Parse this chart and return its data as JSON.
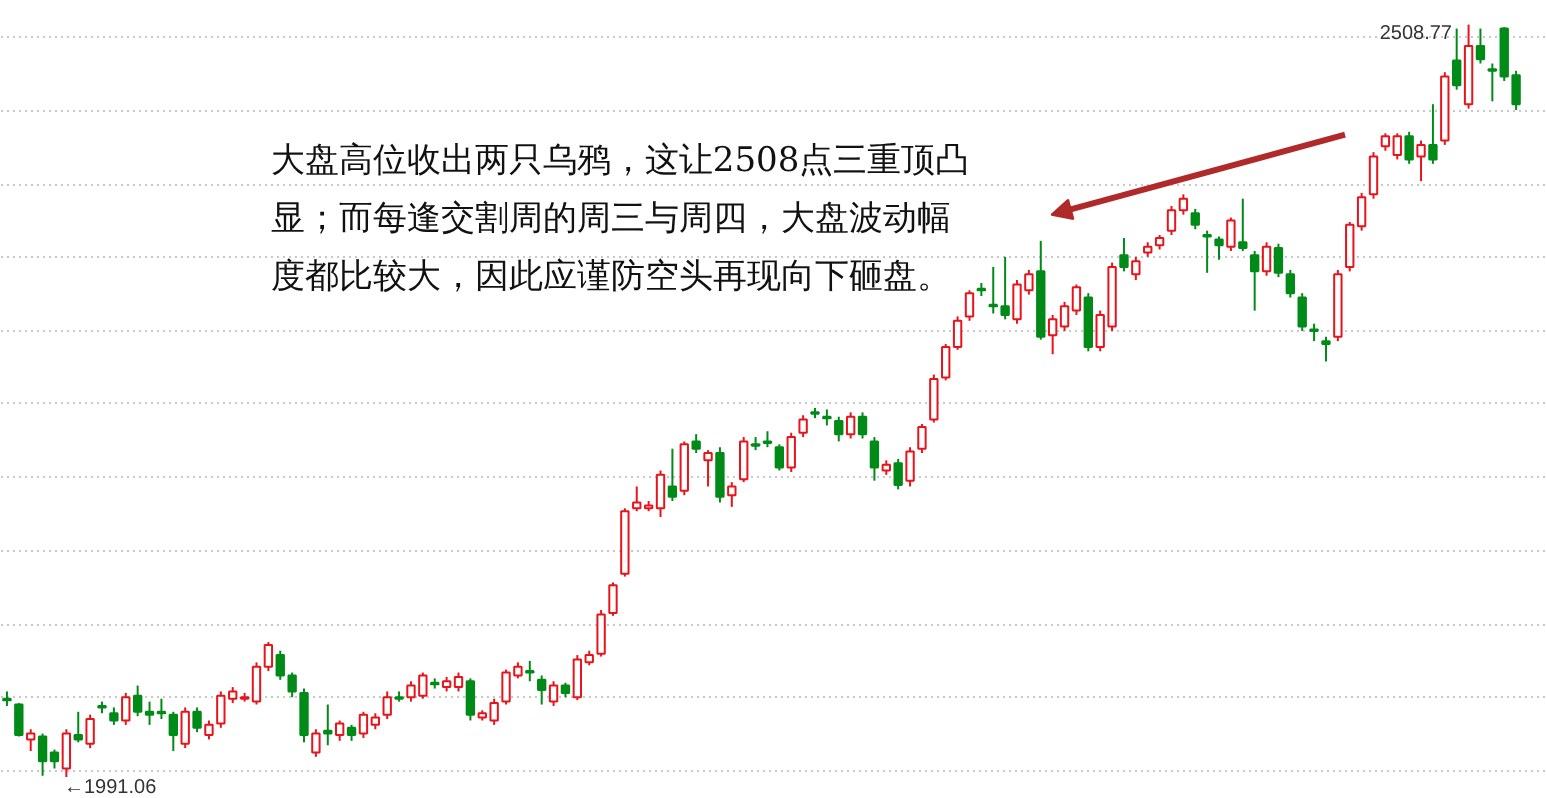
{
  "chart_data": {
    "type": "candlestick",
    "categories": [
      null,
      null,
      null,
      null,
      null,
      null,
      null,
      null,
      null,
      null,
      null,
      null,
      null,
      null,
      null,
      null,
      null,
      null,
      null,
      null,
      null,
      null,
      null,
      null,
      null,
      null,
      null,
      null,
      null,
      null,
      null,
      null,
      null,
      null,
      null,
      null,
      null,
      null,
      null,
      null,
      null,
      null,
      null,
      null,
      null,
      null,
      null,
      null,
      null,
      null,
      null,
      null,
      null,
      null,
      null,
      null,
      null,
      null,
      null,
      null,
      null,
      null,
      null,
      null,
      null,
      null,
      null,
      null,
      null,
      null,
      null,
      null,
      null,
      null,
      null,
      null,
      null,
      null,
      null,
      null,
      null,
      null,
      null,
      null,
      null,
      null,
      null,
      null,
      null,
      null,
      null,
      null,
      null,
      null,
      null,
      null,
      null,
      null,
      null,
      null,
      null,
      null,
      null,
      null,
      null,
      null,
      null,
      null,
      null,
      null,
      null,
      null,
      null,
      null,
      null,
      null,
      null,
      null,
      null,
      null,
      null,
      null,
      null,
      null,
      null,
      null,
      null,
      null
    ],
    "ohlc": [
      [
        2045,
        2050,
        2040,
        2044
      ],
      [
        2041,
        2042,
        2019,
        2020
      ],
      [
        2017,
        2024,
        2009,
        2021
      ],
      [
        2019,
        2021,
        1992,
        2002
      ],
      [
        2008,
        2010,
        1997,
        2002
      ],
      [
        1997,
        2024,
        1991.06,
        2021
      ],
      [
        2020,
        2036,
        2015,
        2017
      ],
      [
        2014,
        2034,
        2011,
        2031
      ],
      [
        2040,
        2043,
        2035,
        2039
      ],
      [
        2035,
        2039,
        2027,
        2030
      ],
      [
        2030,
        2049,
        2027,
        2046
      ],
      [
        2047,
        2054,
        2033,
        2036
      ],
      [
        2036,
        2043,
        2027,
        2034
      ],
      [
        2036,
        2045,
        2031,
        2035
      ],
      [
        2034,
        2036,
        2009,
        2020
      ],
      [
        2014,
        2039,
        2011,
        2036
      ],
      [
        2036,
        2039,
        2022,
        2025
      ],
      [
        2020,
        2030,
        2017,
        2027
      ],
      [
        2028,
        2050,
        2025,
        2047
      ],
      [
        2045,
        2053,
        2042,
        2050
      ],
      [
        2045,
        2049,
        2043,
        2046
      ],
      [
        2043,
        2070,
        2041,
        2067
      ],
      [
        2067,
        2084,
        2064,
        2082
      ],
      [
        2075,
        2078,
        2058,
        2061
      ],
      [
        2061,
        2063,
        2046,
        2050
      ],
      [
        2049,
        2052,
        2015,
        2020
      ],
      [
        2008,
        2024,
        2005,
        2021
      ],
      [
        2023,
        2041,
        2013,
        2021
      ],
      [
        2020,
        2030,
        2016,
        2028
      ],
      [
        2025,
        2027,
        2016,
        2020
      ],
      [
        2021,
        2036,
        2018,
        2034
      ],
      [
        2027,
        2035,
        2024,
        2032
      ],
      [
        2034,
        2050,
        2031,
        2046
      ],
      [
        2046,
        2050,
        2043,
        2045
      ],
      [
        2046,
        2057,
        2043,
        2054
      ],
      [
        2047,
        2063,
        2045,
        2061
      ],
      [
        2056,
        2059,
        2052,
        2055
      ],
      [
        2053,
        2060,
        2050,
        2057
      ],
      [
        2053,
        2063,
        2050,
        2060
      ],
      [
        2057,
        2059,
        2030,
        2034
      ],
      [
        2032,
        2037,
        2030,
        2035
      ],
      [
        2030,
        2045,
        2027,
        2042
      ],
      [
        2043,
        2065,
        2041,
        2063
      ],
      [
        2061,
        2070,
        2059,
        2067
      ],
      [
        2064,
        2071,
        2057,
        2063
      ],
      [
        2058,
        2061,
        2041,
        2051
      ],
      [
        2043,
        2057,
        2040,
        2054
      ],
      [
        2054,
        2056,
        2046,
        2049
      ],
      [
        2046,
        2075,
        2044,
        2072
      ],
      [
        2070,
        2078,
        2068,
        2075
      ],
      [
        2076,
        2106,
        2074,
        2103
      ],
      [
        2104,
        2125,
        2102,
        2123
      ],
      [
        2131,
        2176,
        2129,
        2174
      ],
      [
        2176,
        2191,
        2174,
        2180
      ],
      [
        2176,
        2181,
        2174,
        2178
      ],
      [
        2176,
        2202,
        2170,
        2199
      ],
      [
        2191,
        2217,
        2181,
        2184
      ],
      [
        2188,
        2222,
        2185,
        2220
      ],
      [
        2222,
        2227,
        2214,
        2217
      ],
      [
        2209,
        2216,
        2191,
        2214
      ],
      [
        2214,
        2218,
        2180,
        2184
      ],
      [
        2185,
        2194,
        2177,
        2191
      ],
      [
        2196,
        2225,
        2194,
        2222
      ],
      [
        2220,
        2225,
        2216,
        2219
      ],
      [
        2222,
        2229,
        2218,
        2221
      ],
      [
        2218,
        2220,
        2202,
        2204
      ],
      [
        2204,
        2228,
        2201,
        2225
      ],
      [
        2228,
        2240,
        2225,
        2237
      ],
      [
        2242,
        2245,
        2238,
        2241
      ],
      [
        2239,
        2244,
        2233,
        2238
      ],
      [
        2236,
        2239,
        2222,
        2227
      ],
      [
        2227,
        2242,
        2224,
        2239
      ],
      [
        2239,
        2242,
        2224,
        2227
      ],
      [
        2222,
        2225,
        2195,
        2204
      ],
      [
        2202,
        2209,
        2199,
        2206
      ],
      [
        2207,
        2210,
        2189,
        2192
      ],
      [
        2195,
        2218,
        2191,
        2215
      ],
      [
        2217,
        2234,
        2214,
        2232
      ],
      [
        2237,
        2268,
        2235,
        2265
      ],
      [
        2266,
        2289,
        2264,
        2287
      ],
      [
        2287,
        2308,
        2285,
        2305
      ],
      [
        2308,
        2326,
        2305,
        2324
      ],
      [
        2327,
        2331,
        2322,
        2326
      ],
      [
        2316,
        2342,
        2310,
        2315
      ],
      [
        2315,
        2349,
        2306,
        2309
      ],
      [
        2306,
        2333,
        2303,
        2330
      ],
      [
        2326,
        2340,
        2323,
        2337
      ],
      [
        2339,
        2360,
        2292,
        2294
      ],
      [
        2295,
        2309,
        2282,
        2306
      ],
      [
        2301,
        2318,
        2298,
        2315
      ],
      [
        2312,
        2330,
        2309,
        2328
      ],
      [
        2321,
        2324,
        2284,
        2287
      ],
      [
        2287,
        2312,
        2284,
        2309
      ],
      [
        2301,
        2345,
        2298,
        2342
      ],
      [
        2350,
        2362,
        2339,
        2342
      ],
      [
        2337,
        2349,
        2333,
        2346
      ],
      [
        2352,
        2359,
        2349,
        2356
      ],
      [
        2357,
        2364,
        2354,
        2362
      ],
      [
        2367,
        2384,
        2364,
        2381
      ],
      [
        2381,
        2392,
        2378,
        2389
      ],
      [
        2379,
        2382,
        2368,
        2371
      ],
      [
        2364,
        2367,
        2338,
        2363
      ],
      [
        2361,
        2363,
        2347,
        2357
      ],
      [
        2356,
        2376,
        2353,
        2374
      ],
      [
        2359,
        2389,
        2353,
        2355
      ],
      [
        2350,
        2353,
        2312,
        2339
      ],
      [
        2339,
        2359,
        2336,
        2356
      ],
      [
        2355,
        2358,
        2335,
        2338
      ],
      [
        2337,
        2340,
        2321,
        2324
      ],
      [
        2321,
        2324,
        2298,
        2301
      ],
      [
        2299,
        2303,
        2291,
        2298
      ],
      [
        2291,
        2294,
        2277,
        2289
      ],
      [
        2294,
        2340,
        2291,
        2337
      ],
      [
        2342,
        2373,
        2339,
        2371
      ],
      [
        2370,
        2393,
        2367,
        2390
      ],
      [
        2392,
        2421,
        2389,
        2418
      ],
      [
        2425,
        2434,
        2422,
        2432
      ],
      [
        2419,
        2434,
        2416,
        2432
      ],
      [
        2432,
        2435,
        2413,
        2416
      ],
      [
        2418,
        2429,
        2401,
        2426
      ],
      [
        2426,
        2454,
        2413,
        2416
      ],
      [
        2429,
        2476,
        2426,
        2473
      ],
      [
        2484,
        2506,
        2464,
        2467
      ],
      [
        2454,
        2508.77,
        2451,
        2494
      ],
      [
        2494,
        2506,
        2482,
        2485
      ],
      [
        2478,
        2482,
        2456,
        2477
      ],
      [
        2506,
        2507,
        2470,
        2473
      ],
      [
        2474,
        2477,
        2450,
        2454
      ]
    ],
    "colors": [
      "#008a17",
      "#008a17",
      "#e8141c",
      "#008a17",
      "#008a17",
      "#e8141c",
      "#008a17",
      "#e8141c",
      "#008a17",
      "#008a17",
      "#e8141c",
      "#008a17",
      "#008a17",
      "#008a17",
      "#008a17",
      "#e8141c",
      "#008a17",
      "#e8141c",
      "#e8141c",
      "#e8141c",
      "#e8141c",
      "#e8141c",
      "#e8141c",
      "#008a17",
      "#008a17",
      "#008a17",
      "#e8141c",
      "#008a17",
      "#e8141c",
      "#008a17",
      "#e8141c",
      "#e8141c",
      "#e8141c",
      "#008a17",
      "#e8141c",
      "#e8141c",
      "#008a17",
      "#e8141c",
      "#e8141c",
      "#008a17",
      "#e8141c",
      "#e8141c",
      "#e8141c",
      "#e8141c",
      "#008a17",
      "#008a17",
      "#e8141c",
      "#008a17",
      "#e8141c",
      "#e8141c",
      "#e8141c",
      "#e8141c",
      "#e8141c",
      "#e8141c",
      "#e8141c",
      "#e8141c",
      "#008a17",
      "#e8141c",
      "#008a17",
      "#e8141c",
      "#008a17",
      "#e8141c",
      "#e8141c",
      "#008a17",
      "#008a17",
      "#008a17",
      "#e8141c",
      "#e8141c",
      "#008a17",
      "#008a17",
      "#008a17",
      "#e8141c",
      "#008a17",
      "#008a17",
      "#e8141c",
      "#008a17",
      "#e8141c",
      "#e8141c",
      "#e8141c",
      "#e8141c",
      "#e8141c",
      "#e8141c",
      "#008a17",
      "#008a17",
      "#008a17",
      "#e8141c",
      "#e8141c",
      "#008a17",
      "#e8141c",
      "#e8141c",
      "#e8141c",
      "#008a17",
      "#e8141c",
      "#e8141c",
      "#008a17",
      "#e8141c",
      "#e8141c",
      "#e8141c",
      "#e8141c",
      "#e8141c",
      "#008a17",
      "#008a17",
      "#008a17",
      "#e8141c",
      "#008a17",
      "#008a17",
      "#e8141c",
      "#008a17",
      "#008a17",
      "#008a17",
      "#008a17",
      "#008a17",
      "#e8141c",
      "#e8141c",
      "#e8141c",
      "#e8141c",
      "#e8141c",
      "#e8141c",
      "#008a17",
      "#e8141c",
      "#008a17",
      "#e8141c",
      "#008a17",
      "#e8141c",
      "#008a17",
      "#008a17",
      "#008a17",
      "#008a17"
    ],
    "ylim": [
      1976,
      2525
    ],
    "yticks": [
      {
        "value": 1995,
        "label": null
      },
      {
        "value": 2046,
        "label": null
      },
      {
        "value": 2096,
        "label": null
      },
      {
        "value": 2147,
        "label": null
      },
      {
        "value": 2197,
        "label": null
      },
      {
        "value": 2248,
        "label": null
      },
      {
        "value": 2298,
        "label": null
      },
      {
        "value": 2349,
        "label": null
      },
      {
        "value": 2399,
        "label": null
      },
      {
        "value": 2450,
        "label": null
      },
      {
        "value": 2500,
        "label": null
      }
    ],
    "grid": "y",
    "tick_labels": false,
    "annotations": [
      "大盘高位收出两只乌鸦，这让2508点三重顶凸显；而每逢交割周的周三与周四，大盘波动幅度都比较大，因此应谨防空头再现向下砸盘。",
      "2508.77",
      "←1991.06"
    ]
  }
}
